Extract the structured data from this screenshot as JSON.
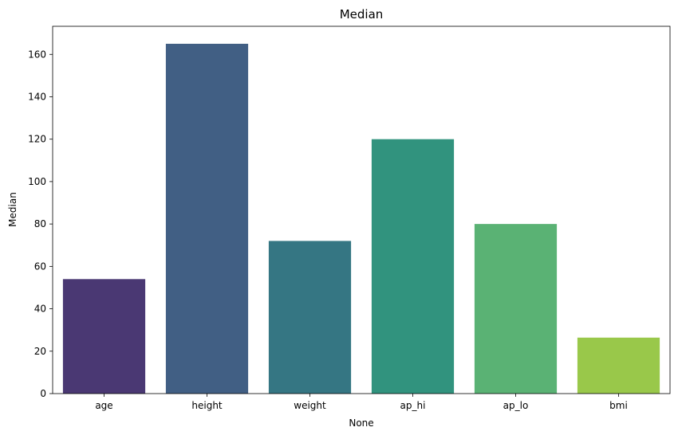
{
  "chart_data": {
    "type": "bar",
    "title": "Median",
    "xlabel": "None",
    "ylabel": "Median",
    "categories": [
      "age",
      "height",
      "weight",
      "ap_hi",
      "ap_lo",
      "bmi"
    ],
    "values": [
      54,
      165,
      72,
      120,
      80,
      26.4
    ],
    "colors": [
      "#4a3873",
      "#415f84",
      "#357683",
      "#31937e",
      "#5ab274",
      "#99c84a"
    ],
    "ylim": [
      0,
      173.25
    ],
    "yticks": [
      0,
      20,
      40,
      60,
      80,
      100,
      120,
      140,
      160
    ],
    "grid": false,
    "legend": "none"
  }
}
